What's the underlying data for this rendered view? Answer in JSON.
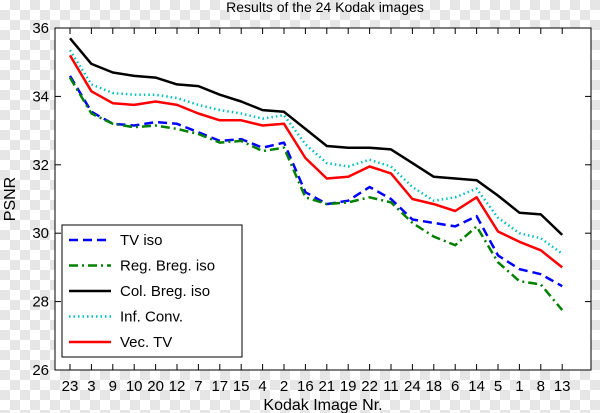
{
  "chart_data": {
    "type": "line",
    "title": "Results of the 24 Kodak images",
    "xlabel": "Kodak Image Nr.",
    "ylabel": "PSNR",
    "categories": [
      "23",
      "3",
      "9",
      "10",
      "20",
      "12",
      "7",
      "17",
      "15",
      "4",
      "2",
      "16",
      "21",
      "19",
      "22",
      "11",
      "24",
      "18",
      "6",
      "14",
      "5",
      "1",
      "8",
      "13"
    ],
    "ylim": [
      26,
      36
    ],
    "yticks": [
      26,
      28,
      30,
      32,
      34,
      36
    ],
    "grid": false,
    "legend_position": "bottom-left",
    "series": [
      {
        "name": "TV iso",
        "color": "#0000ff",
        "dash": "dashed",
        "values": [
          34.6,
          33.55,
          33.2,
          33.15,
          33.25,
          33.2,
          32.95,
          32.7,
          32.75,
          32.5,
          32.65,
          31.2,
          30.85,
          30.95,
          31.35,
          31.0,
          30.4,
          30.3,
          30.2,
          30.5,
          29.35,
          28.95,
          28.8,
          28.45
        ]
      },
      {
        "name": "Reg. Breg. iso",
        "color": "#008000",
        "dash": "dashdot",
        "values": [
          34.55,
          33.5,
          33.2,
          33.1,
          33.15,
          33.05,
          32.9,
          32.65,
          32.7,
          32.4,
          32.5,
          31.05,
          30.85,
          30.9,
          31.05,
          30.9,
          30.3,
          29.9,
          29.65,
          30.2,
          29.15,
          28.6,
          28.5,
          27.75
        ]
      },
      {
        "name": "Col. Breg. iso",
        "color": "#000000",
        "dash": "solid",
        "values": [
          35.7,
          34.95,
          34.7,
          34.6,
          34.55,
          34.35,
          34.3,
          34.05,
          33.85,
          33.6,
          33.55,
          33.05,
          32.55,
          32.5,
          32.5,
          32.45,
          32.05,
          31.65,
          31.6,
          31.55,
          31.1,
          30.6,
          30.55,
          29.95
        ]
      },
      {
        "name": "Inf. Conv.",
        "color": "#00bfbf",
        "dash": "dotted",
        "values": [
          35.35,
          34.35,
          34.1,
          34.05,
          34.05,
          33.95,
          33.75,
          33.6,
          33.5,
          33.35,
          33.45,
          32.6,
          32.05,
          31.95,
          32.15,
          31.95,
          31.35,
          30.95,
          31.05,
          31.3,
          30.45,
          30.0,
          29.85,
          29.4
        ]
      },
      {
        "name": "Vec. TV",
        "color": "#ff0000",
        "dash": "solid",
        "values": [
          35.2,
          34.15,
          33.8,
          33.75,
          33.85,
          33.75,
          33.5,
          33.3,
          33.3,
          33.15,
          33.2,
          32.2,
          31.6,
          31.65,
          31.95,
          31.75,
          31.0,
          30.85,
          30.65,
          31.05,
          30.05,
          29.75,
          29.5,
          29.0
        ]
      }
    ]
  }
}
